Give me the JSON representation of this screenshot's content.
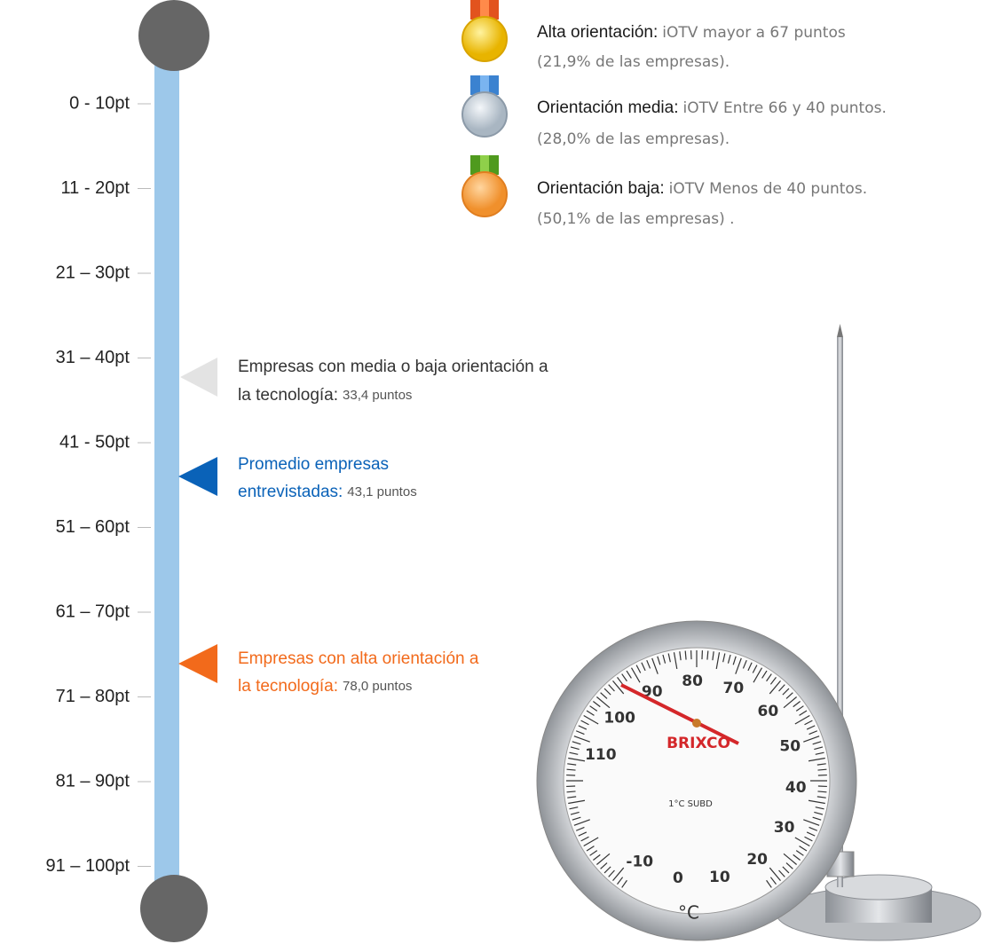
{
  "scale": {
    "labels": [
      "0 - 10pt",
      "11 - 20pt",
      "21 – 30pt",
      "31 – 40pt",
      "41 - 50pt",
      "51 – 60pt",
      "61 – 70pt",
      "71 – 80pt",
      "81 – 90pt",
      "91 – 100pt"
    ]
  },
  "markers": [
    {
      "lines": [
        "Empresas con media o baja orientación a",
        "la tecnología:"
      ],
      "value": "33,4 puntos"
    },
    {
      "lines": [
        "Promedio empresas",
        "entrevistadas:"
      ],
      "value": "43,1 puntos"
    },
    {
      "lines": [
        "Empresas con alta orientación a",
        "la tecnología:"
      ],
      "value": "78,0 puntos"
    }
  ],
  "legend": [
    {
      "label": "Alta orientación:",
      "desc": "iOTV mayor a 67 puntos",
      "share": "(21,9% de las empresas)."
    },
    {
      "label": "Orientación media:",
      "desc": "iOTV Entre 66 y 40 puntos.",
      "share": "(28,0% de las empresas)."
    },
    {
      "label": "Orientación baja:",
      "desc": "iOTV Menos de 40 puntos.",
      "share": "(50,1% de las empresas) ."
    }
  ],
  "thermometer": {
    "brand": "BRIXCO",
    "subdivision": "1°C SUBD",
    "unit": "°C",
    "scale": [
      "-10",
      "0",
      "10",
      "20",
      "30",
      "40",
      "50",
      "60",
      "70",
      "80",
      "90",
      "100",
      "110"
    ]
  }
}
